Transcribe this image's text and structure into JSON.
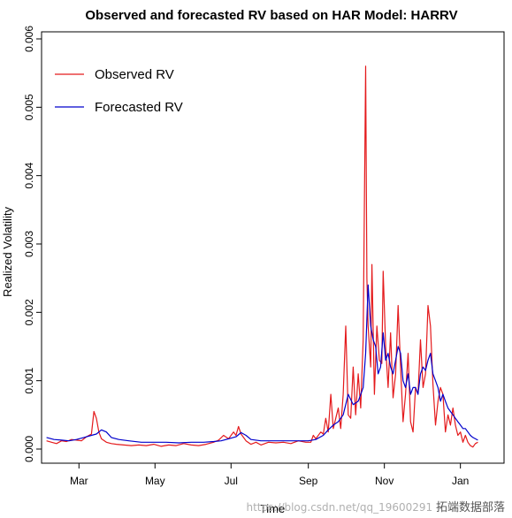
{
  "chart_data": {
    "type": "line",
    "title": "Observed and forecasted RV based on HAR Model: HARRV",
    "xlabel": "Time",
    "ylabel": "Realized Volatility",
    "ylim": [
      0,
      0.006
    ],
    "y_ticks": [
      "0.000",
      "0.001",
      "0.002",
      "0.003",
      "0.004",
      "0.005",
      "0.006"
    ],
    "x_range_days": [
      -30,
      341
    ],
    "x_ticks": [
      {
        "label": "Mar",
        "day": 0
      },
      {
        "label": "May",
        "day": 61
      },
      {
        "label": "Jul",
        "day": 122
      },
      {
        "label": "Sep",
        "day": 184
      },
      {
        "label": "Nov",
        "day": 245
      },
      {
        "label": "Jan",
        "day": 306
      }
    ],
    "legend": "top-left",
    "series": [
      {
        "name": "Observed RV",
        "color": "#e41a1c",
        "points": [
          [
            -26,
            0.00012
          ],
          [
            -22,
            0.0001
          ],
          [
            -18,
            8e-05
          ],
          [
            -14,
            0.00012
          ],
          [
            -10,
            0.00011
          ],
          [
            -6,
            0.00014
          ],
          [
            -2,
            0.00013
          ],
          [
            2,
            0.00012
          ],
          [
            6,
            0.00018
          ],
          [
            10,
            0.00022
          ],
          [
            12,
            0.00055
          ],
          [
            14,
            0.00045
          ],
          [
            16,
            0.00025
          ],
          [
            18,
            0.00015
          ],
          [
            22,
            0.0001
          ],
          [
            26,
            8e-05
          ],
          [
            30,
            7e-05
          ],
          [
            36,
            6e-05
          ],
          [
            42,
            5e-05
          ],
          [
            48,
            6e-05
          ],
          [
            54,
            5e-05
          ],
          [
            60,
            7e-05
          ],
          [
            66,
            4e-05
          ],
          [
            72,
            6e-05
          ],
          [
            78,
            5e-05
          ],
          [
            84,
            8e-05
          ],
          [
            90,
            6e-05
          ],
          [
            96,
            5e-05
          ],
          [
            102,
            7e-05
          ],
          [
            108,
            0.0001
          ],
          [
            112,
            0.00013
          ],
          [
            116,
            0.0002
          ],
          [
            120,
            0.00015
          ],
          [
            124,
            0.00025
          ],
          [
            126,
            0.0002
          ],
          [
            128,
            0.00033
          ],
          [
            130,
            0.00022
          ],
          [
            134,
            0.00012
          ],
          [
            138,
            7e-05
          ],
          [
            142,
            0.0001
          ],
          [
            146,
            6e-05
          ],
          [
            152,
            0.0001
          ],
          [
            158,
            9e-05
          ],
          [
            164,
            0.0001
          ],
          [
            170,
            8e-05
          ],
          [
            176,
            0.00012
          ],
          [
            182,
            0.0001
          ],
          [
            186,
            0.0001
          ],
          [
            188,
            0.0002
          ],
          [
            190,
            0.00015
          ],
          [
            194,
            0.00025
          ],
          [
            196,
            0.00022
          ],
          [
            198,
            0.00045
          ],
          [
            200,
            0.00025
          ],
          [
            202,
            0.0008
          ],
          [
            204,
            0.0003
          ],
          [
            206,
            0.00045
          ],
          [
            208,
            0.0006
          ],
          [
            210,
            0.0003
          ],
          [
            212,
            0.0008
          ],
          [
            214,
            0.0018
          ],
          [
            216,
            0.0005
          ],
          [
            218,
            0.00045
          ],
          [
            220,
            0.0012
          ],
          [
            222,
            0.0005
          ],
          [
            224,
            0.0011
          ],
          [
            226,
            0.0006
          ],
          [
            228,
            0.0016
          ],
          [
            230,
            0.0056
          ],
          [
            231,
            0.0025
          ],
          [
            232,
            0.0018
          ],
          [
            234,
            0.0012
          ],
          [
            235,
            0.0027
          ],
          [
            237,
            0.0008
          ],
          [
            239,
            0.0018
          ],
          [
            241,
            0.0013
          ],
          [
            243,
            0.00125
          ],
          [
            244,
            0.0026
          ],
          [
            246,
            0.0015
          ],
          [
            248,
            0.0009
          ],
          [
            250,
            0.0017
          ],
          [
            252,
            0.00075
          ],
          [
            254,
            0.0011
          ],
          [
            256,
            0.0021
          ],
          [
            258,
            0.0012
          ],
          [
            260,
            0.0004
          ],
          [
            262,
            0.0008
          ],
          [
            264,
            0.0014
          ],
          [
            266,
            0.0004
          ],
          [
            268,
            0.00025
          ],
          [
            270,
            0.0009
          ],
          [
            272,
            0.0008
          ],
          [
            274,
            0.0016
          ],
          [
            276,
            0.0009
          ],
          [
            278,
            0.0011
          ],
          [
            280,
            0.0021
          ],
          [
            282,
            0.0018
          ],
          [
            284,
            0.00095
          ],
          [
            286,
            0.00035
          ],
          [
            288,
            0.0007
          ],
          [
            290,
            0.0009
          ],
          [
            292,
            0.0008
          ],
          [
            294,
            0.00025
          ],
          [
            296,
            0.0005
          ],
          [
            298,
            0.00035
          ],
          [
            300,
            0.0006
          ],
          [
            302,
            0.00035
          ],
          [
            304,
            0.0002
          ],
          [
            306,
            0.00025
          ],
          [
            308,
            0.0001
          ],
          [
            310,
            0.0002
          ],
          [
            312,
            0.0001
          ],
          [
            314,
            5e-05
          ],
          [
            316,
            3e-05
          ],
          [
            318,
            8e-05
          ],
          [
            320,
            0.0001
          ]
        ]
      },
      {
        "name": "Forecasted RV",
        "color": "#0000cc",
        "points": [
          [
            -26,
            0.00017
          ],
          [
            -20,
            0.00014
          ],
          [
            -14,
            0.00013
          ],
          [
            -8,
            0.00012
          ],
          [
            -2,
            0.00014
          ],
          [
            4,
            0.00017
          ],
          [
            10,
            0.0002
          ],
          [
            14,
            0.00022
          ],
          [
            18,
            0.00028
          ],
          [
            22,
            0.00025
          ],
          [
            26,
            0.00017
          ],
          [
            32,
            0.00014
          ],
          [
            40,
            0.00012
          ],
          [
            50,
            0.0001
          ],
          [
            60,
            0.0001
          ],
          [
            70,
            0.0001
          ],
          [
            80,
            9e-05
          ],
          [
            90,
            0.0001
          ],
          [
            100,
            0.0001
          ],
          [
            108,
            0.00011
          ],
          [
            114,
            0.00012
          ],
          [
            120,
            0.00015
          ],
          [
            126,
            0.00018
          ],
          [
            130,
            0.00024
          ],
          [
            134,
            0.0002
          ],
          [
            138,
            0.00014
          ],
          [
            146,
            0.00012
          ],
          [
            156,
            0.00012
          ],
          [
            166,
            0.00012
          ],
          [
            176,
            0.00012
          ],
          [
            184,
            0.00012
          ],
          [
            190,
            0.00014
          ],
          [
            196,
            0.0002
          ],
          [
            200,
            0.00028
          ],
          [
            204,
            0.00035
          ],
          [
            208,
            0.0004
          ],
          [
            212,
            0.0005
          ],
          [
            216,
            0.0008
          ],
          [
            220,
            0.00065
          ],
          [
            224,
            0.0007
          ],
          [
            228,
            0.0009
          ],
          [
            230,
            0.0014
          ],
          [
            232,
            0.0024
          ],
          [
            234,
            0.0018
          ],
          [
            236,
            0.0016
          ],
          [
            238,
            0.0015
          ],
          [
            240,
            0.0011
          ],
          [
            242,
            0.0012
          ],
          [
            244,
            0.0017
          ],
          [
            246,
            0.0013
          ],
          [
            248,
            0.0014
          ],
          [
            250,
            0.0012
          ],
          [
            252,
            0.0011
          ],
          [
            254,
            0.0013
          ],
          [
            256,
            0.0015
          ],
          [
            258,
            0.0014
          ],
          [
            260,
            0.001
          ],
          [
            262,
            0.0009
          ],
          [
            264,
            0.0011
          ],
          [
            266,
            0.0008
          ],
          [
            268,
            0.0009
          ],
          [
            270,
            0.0009
          ],
          [
            272,
            0.0008
          ],
          [
            274,
            0.0011
          ],
          [
            276,
            0.0012
          ],
          [
            278,
            0.00115
          ],
          [
            280,
            0.0013
          ],
          [
            282,
            0.0014
          ],
          [
            284,
            0.0011
          ],
          [
            286,
            0.001
          ],
          [
            288,
            0.0009
          ],
          [
            290,
            0.0007
          ],
          [
            292,
            0.0008
          ],
          [
            294,
            0.0007
          ],
          [
            296,
            0.0006
          ],
          [
            298,
            0.00055
          ],
          [
            300,
            0.0005
          ],
          [
            302,
            0.00045
          ],
          [
            304,
            0.0004
          ],
          [
            306,
            0.00035
          ],
          [
            308,
            0.0003
          ],
          [
            310,
            0.0003
          ],
          [
            312,
            0.00025
          ],
          [
            314,
            0.0002
          ],
          [
            316,
            0.00017
          ],
          [
            318,
            0.00015
          ],
          [
            320,
            0.00013
          ]
        ]
      }
    ]
  },
  "watermark": {
    "url": "https://blog.csdn.net/qq_19600291",
    "brand": "拓端数据部落"
  }
}
